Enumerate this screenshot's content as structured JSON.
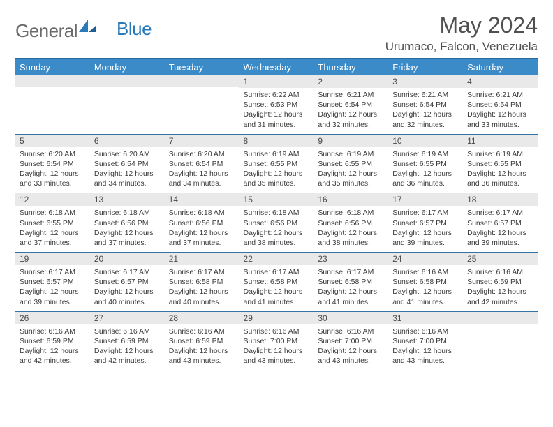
{
  "logo": {
    "text1": "General",
    "text2": "Blue"
  },
  "title": "May 2024",
  "location": "Urumaco, Falcon, Venezuela",
  "colors": {
    "header_bg": "#3b8bc8",
    "header_border": "#2a6a9e",
    "row_border": "#3373a8",
    "daynum_bg": "#e9e9e9",
    "text_dark": "#3a3a3a",
    "title_gray": "#505050",
    "logo_gray": "#6b6b6b",
    "logo_blue": "#2a7ab9"
  },
  "weekdays": [
    "Sunday",
    "Monday",
    "Tuesday",
    "Wednesday",
    "Thursday",
    "Friday",
    "Saturday"
  ],
  "weeks": [
    [
      null,
      null,
      null,
      {
        "n": "1",
        "sr": "6:22 AM",
        "ss": "6:53 PM",
        "dl": "12 hours and 31 minutes."
      },
      {
        "n": "2",
        "sr": "6:21 AM",
        "ss": "6:54 PM",
        "dl": "12 hours and 32 minutes."
      },
      {
        "n": "3",
        "sr": "6:21 AM",
        "ss": "6:54 PM",
        "dl": "12 hours and 32 minutes."
      },
      {
        "n": "4",
        "sr": "6:21 AM",
        "ss": "6:54 PM",
        "dl": "12 hours and 33 minutes."
      }
    ],
    [
      {
        "n": "5",
        "sr": "6:20 AM",
        "ss": "6:54 PM",
        "dl": "12 hours and 33 minutes."
      },
      {
        "n": "6",
        "sr": "6:20 AM",
        "ss": "6:54 PM",
        "dl": "12 hours and 34 minutes."
      },
      {
        "n": "7",
        "sr": "6:20 AM",
        "ss": "6:54 PM",
        "dl": "12 hours and 34 minutes."
      },
      {
        "n": "8",
        "sr": "6:19 AM",
        "ss": "6:55 PM",
        "dl": "12 hours and 35 minutes."
      },
      {
        "n": "9",
        "sr": "6:19 AM",
        "ss": "6:55 PM",
        "dl": "12 hours and 35 minutes."
      },
      {
        "n": "10",
        "sr": "6:19 AM",
        "ss": "6:55 PM",
        "dl": "12 hours and 36 minutes."
      },
      {
        "n": "11",
        "sr": "6:19 AM",
        "ss": "6:55 PM",
        "dl": "12 hours and 36 minutes."
      }
    ],
    [
      {
        "n": "12",
        "sr": "6:18 AM",
        "ss": "6:55 PM",
        "dl": "12 hours and 37 minutes."
      },
      {
        "n": "13",
        "sr": "6:18 AM",
        "ss": "6:56 PM",
        "dl": "12 hours and 37 minutes."
      },
      {
        "n": "14",
        "sr": "6:18 AM",
        "ss": "6:56 PM",
        "dl": "12 hours and 37 minutes."
      },
      {
        "n": "15",
        "sr": "6:18 AM",
        "ss": "6:56 PM",
        "dl": "12 hours and 38 minutes."
      },
      {
        "n": "16",
        "sr": "6:18 AM",
        "ss": "6:56 PM",
        "dl": "12 hours and 38 minutes."
      },
      {
        "n": "17",
        "sr": "6:17 AM",
        "ss": "6:57 PM",
        "dl": "12 hours and 39 minutes."
      },
      {
        "n": "18",
        "sr": "6:17 AM",
        "ss": "6:57 PM",
        "dl": "12 hours and 39 minutes."
      }
    ],
    [
      {
        "n": "19",
        "sr": "6:17 AM",
        "ss": "6:57 PM",
        "dl": "12 hours and 39 minutes."
      },
      {
        "n": "20",
        "sr": "6:17 AM",
        "ss": "6:57 PM",
        "dl": "12 hours and 40 minutes."
      },
      {
        "n": "21",
        "sr": "6:17 AM",
        "ss": "6:58 PM",
        "dl": "12 hours and 40 minutes."
      },
      {
        "n": "22",
        "sr": "6:17 AM",
        "ss": "6:58 PM",
        "dl": "12 hours and 41 minutes."
      },
      {
        "n": "23",
        "sr": "6:17 AM",
        "ss": "6:58 PM",
        "dl": "12 hours and 41 minutes."
      },
      {
        "n": "24",
        "sr": "6:16 AM",
        "ss": "6:58 PM",
        "dl": "12 hours and 41 minutes."
      },
      {
        "n": "25",
        "sr": "6:16 AM",
        "ss": "6:59 PM",
        "dl": "12 hours and 42 minutes."
      }
    ],
    [
      {
        "n": "26",
        "sr": "6:16 AM",
        "ss": "6:59 PM",
        "dl": "12 hours and 42 minutes."
      },
      {
        "n": "27",
        "sr": "6:16 AM",
        "ss": "6:59 PM",
        "dl": "12 hours and 42 minutes."
      },
      {
        "n": "28",
        "sr": "6:16 AM",
        "ss": "6:59 PM",
        "dl": "12 hours and 43 minutes."
      },
      {
        "n": "29",
        "sr": "6:16 AM",
        "ss": "7:00 PM",
        "dl": "12 hours and 43 minutes."
      },
      {
        "n": "30",
        "sr": "6:16 AM",
        "ss": "7:00 PM",
        "dl": "12 hours and 43 minutes."
      },
      {
        "n": "31",
        "sr": "6:16 AM",
        "ss": "7:00 PM",
        "dl": "12 hours and 43 minutes."
      },
      null
    ]
  ],
  "labels": {
    "sunrise": "Sunrise:",
    "sunset": "Sunset:",
    "daylight": "Daylight:"
  }
}
